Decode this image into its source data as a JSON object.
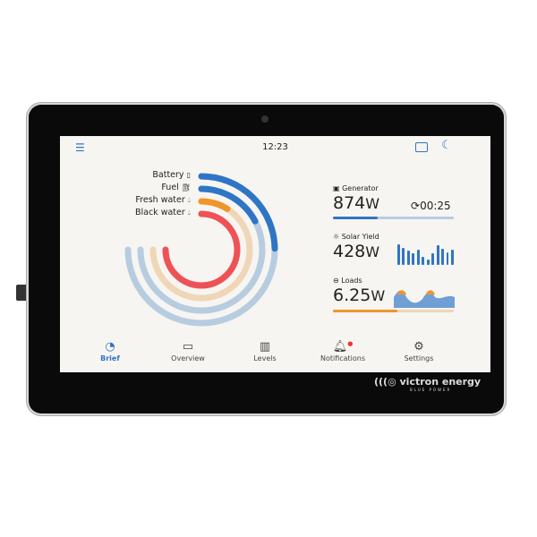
{
  "status": {
    "time": "12:23"
  },
  "levels": [
    {
      "label": "Battery",
      "icon": "battery-icon",
      "level": 0.33,
      "color": "#2f75c6",
      "track": "#b8cce0"
    },
    {
      "label": "Fuel",
      "icon": "fuel-pump-icon",
      "level": 0.23,
      "color": "#2f75c6",
      "track": "#b8cce0"
    },
    {
      "label": "Fresh water",
      "icon": "water-drop-icon",
      "level": 0.12,
      "color": "#f0952a",
      "track": "#efd6b6"
    },
    {
      "label": "Black water",
      "icon": "waste-drop-icon",
      "level": 1.0,
      "color": "#ee5256",
      "track": "#f2c0c0"
    }
  ],
  "generator": {
    "title": "Generator",
    "value": "874",
    "unit": "W",
    "timer": "00:25",
    "level": 0.37
  },
  "solar": {
    "title": "Solar Yield",
    "value": "428",
    "unit": "W",
    "bars": [
      0.9,
      0.75,
      0.6,
      0.5,
      0.65,
      0.35,
      0.25,
      0.5,
      0.85,
      0.7,
      0.55,
      0.65
    ]
  },
  "loads": {
    "title": "Loads",
    "value": "6.25",
    "unit": "W",
    "level": 0.53
  },
  "nav": [
    {
      "label": "Brief",
      "active": true
    },
    {
      "label": "Overview"
    },
    {
      "label": "Levels"
    },
    {
      "label": "Notifications"
    },
    {
      "label": "Settings"
    }
  ],
  "brand": {
    "name": "victron energy",
    "tagline": "BLUE POWER"
  },
  "colors": {
    "accent": "#2f75c6",
    "orange": "#f0952a"
  }
}
